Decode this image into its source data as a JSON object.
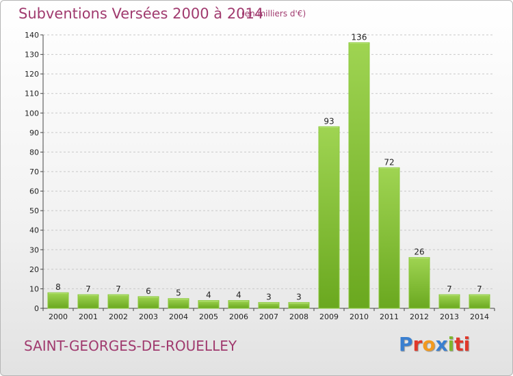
{
  "header": {
    "title": "Subventions Versées 2000 à 2014",
    "subtitle": "(en milliers d'€)"
  },
  "footer": {
    "commune": "SAINT-GEORGES-DE-ROUELLEY",
    "logo_text": "Proxiti",
    "logo_colors": [
      "#3a7fd0",
      "#e0392b",
      "#f29a1f",
      "#3a7fd0",
      "#7fb82e",
      "#e0392b",
      "#e0392b"
    ]
  },
  "chart_data": {
    "type": "bar",
    "title": "Subventions Versées 2000 à 2014",
    "subtitle": "(en milliers d'€)",
    "categories": [
      "2000",
      "2001",
      "2002",
      "2003",
      "2004",
      "2005",
      "2006",
      "2007",
      "2008",
      "2009",
      "2010",
      "2011",
      "2012",
      "2013",
      "2014"
    ],
    "values": [
      8,
      7,
      7,
      6,
      5,
      4,
      4,
      3,
      3,
      93,
      136,
      72,
      26,
      7,
      7
    ],
    "value_labels": [
      "8",
      "7",
      "7",
      "6",
      "5",
      "4",
      "4",
      "3",
      "3",
      "93",
      "136",
      "72",
      "26",
      "7",
      "7"
    ],
    "ylim": [
      0,
      140
    ],
    "yticks": [
      0,
      10,
      20,
      30,
      40,
      50,
      60,
      70,
      80,
      90,
      100,
      110,
      120,
      130,
      140
    ],
    "ytick_labels": [
      "0",
      "10",
      "20",
      "30",
      "40",
      "50",
      "60",
      "70",
      "80",
      "90",
      "100",
      "110",
      "120",
      "130",
      "140"
    ],
    "grid": true,
    "bar_color": "#7cbb2e",
    "bar_color_light": "#a6d85a",
    "xlabel": "",
    "ylabel": ""
  }
}
